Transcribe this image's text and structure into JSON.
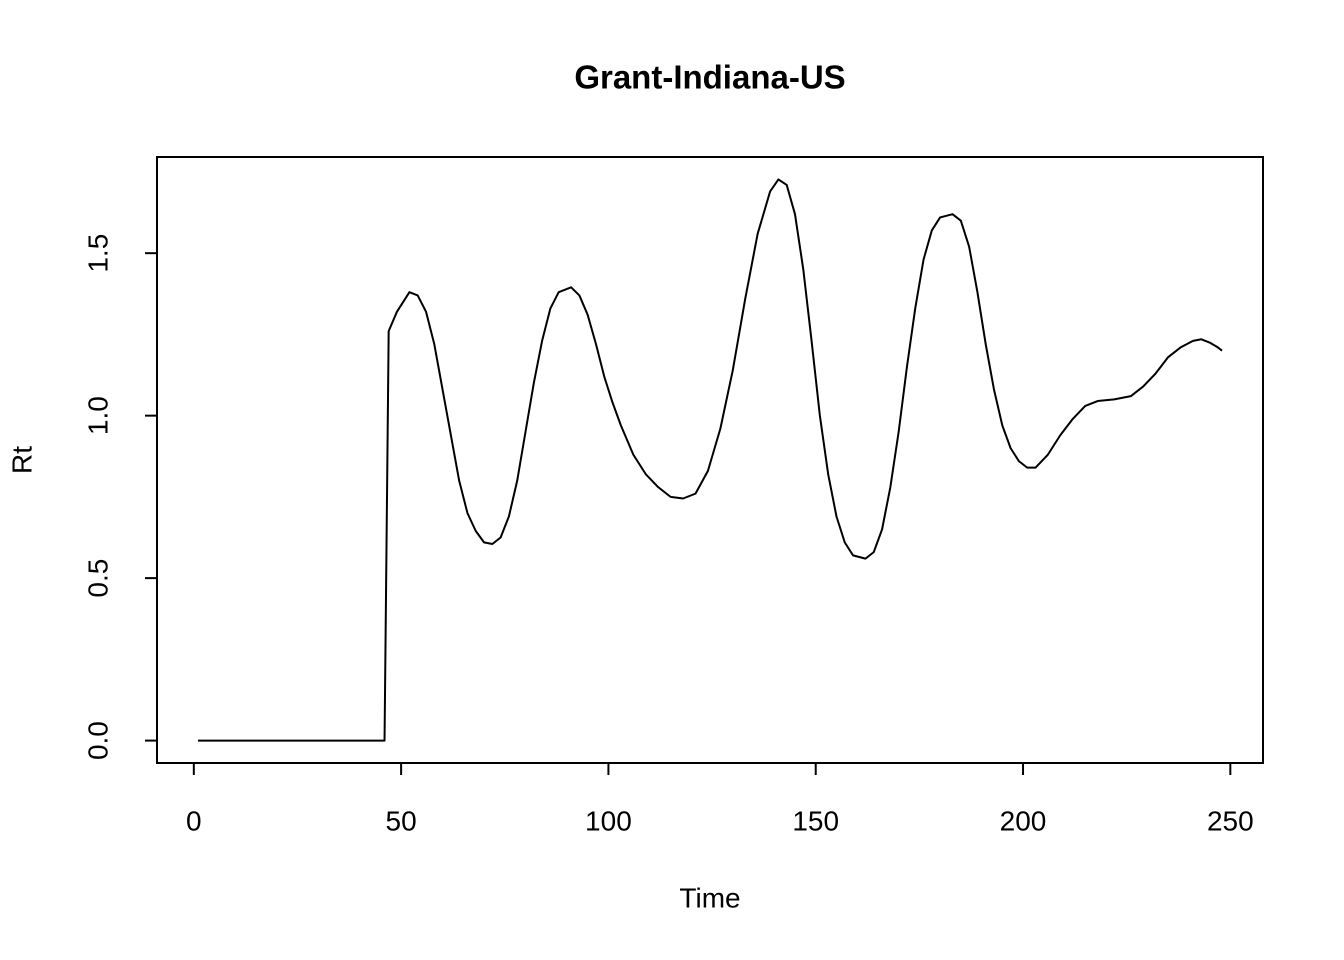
{
  "chart_data": {
    "type": "line",
    "title": "Grant-Indiana-US",
    "x_label": "Time",
    "y_label": "Rt",
    "series": [
      {
        "color": "#000000",
        "x": [
          1,
          46,
          47,
          49,
          52,
          54,
          56,
          58,
          60,
          62,
          64,
          66,
          68,
          70,
          72,
          74,
          76,
          78,
          80,
          82,
          84,
          86,
          88,
          91,
          93,
          95,
          97,
          99,
          101,
          103,
          106,
          109,
          112,
          115,
          118,
          121,
          124,
          127,
          130,
          133,
          136,
          139,
          141,
          143,
          145,
          147,
          149,
          151,
          153,
          155,
          157,
          159,
          162,
          164,
          166,
          168,
          170,
          172,
          174,
          176,
          178,
          180,
          183,
          185,
          187,
          189,
          191,
          193,
          195,
          197,
          199,
          201,
          203,
          206,
          209,
          212,
          215,
          218,
          222,
          226,
          229,
          232,
          235,
          238,
          241,
          243,
          245,
          247,
          248
        ],
        "values": [
          0,
          0,
          1.26,
          1.32,
          1.38,
          1.37,
          1.32,
          1.22,
          1.08,
          0.94,
          0.8,
          0.7,
          0.645,
          0.61,
          0.605,
          0.625,
          0.69,
          0.8,
          0.95,
          1.1,
          1.23,
          1.33,
          1.38,
          1.395,
          1.37,
          1.31,
          1.22,
          1.12,
          1.04,
          0.97,
          0.88,
          0.82,
          0.78,
          0.75,
          0.745,
          0.76,
          0.83,
          0.96,
          1.14,
          1.36,
          1.56,
          1.69,
          1.727,
          1.71,
          1.62,
          1.45,
          1.23,
          1.0,
          0.82,
          0.69,
          0.61,
          0.57,
          0.56,
          0.58,
          0.65,
          0.78,
          0.95,
          1.15,
          1.33,
          1.48,
          1.57,
          1.61,
          1.62,
          1.6,
          1.52,
          1.38,
          1.22,
          1.08,
          0.97,
          0.9,
          0.86,
          0.84,
          0.84,
          0.88,
          0.94,
          0.99,
          1.03,
          1.045,
          1.05,
          1.06,
          1.09,
          1.13,
          1.18,
          1.21,
          1.23,
          1.235,
          1.225,
          1.21,
          1.2
        ]
      }
    ],
    "xlim": [
      -8.88,
      257.88
    ],
    "xticks": [
      0,
      50,
      100,
      150,
      200,
      250
    ],
    "ylim": [
      -0.069,
      1.796
    ],
    "yticks": [
      {
        "value": 0,
        "label": "0.0"
      },
      0.5,
      {
        "value": 1,
        "label": "1.0"
      },
      1.5
    ],
    "grid": false
  }
}
